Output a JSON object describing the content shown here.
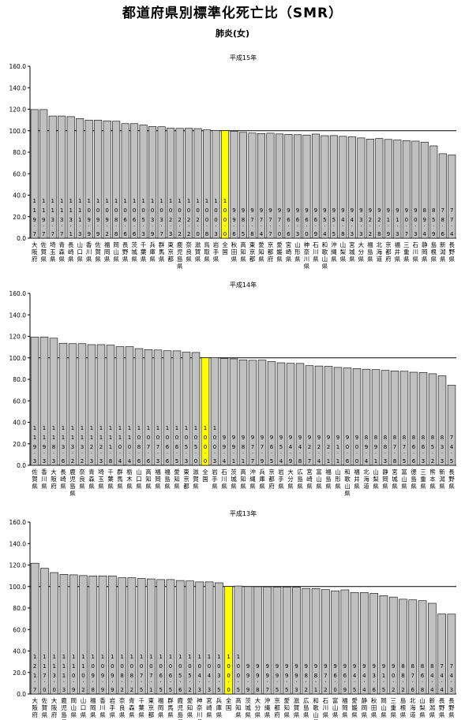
{
  "title": "都道府県別標準化死亡比（SMR）",
  "subtitle": "肺炎(女)",
  "colors": {
    "bar": "#c0c0c0",
    "highlight": "#ffff00",
    "stroke": "#000000",
    "reference_line": "#000000"
  },
  "chart_data": [
    {
      "type": "bar",
      "title": "平成15年",
      "ylim": [
        0,
        160
      ],
      "yticks": [
        "0.0",
        "20.0",
        "40.0",
        "60.0",
        "80.0",
        "100.0",
        "120.0",
        "140.0",
        "160.0"
      ],
      "reference_line": 100,
      "highlight": "全国",
      "categories": [
        "大阪府",
        "佐賀県",
        "埼玉県",
        "青森県",
        "長崎県",
        "山口県",
        "香川県",
        "佐賀県",
        "福岡県",
        "岡山県",
        "長野県",
        "茨城県",
        "千葉県",
        "兵庫県",
        "群馬県",
        "東京都",
        "鹿児島県",
        "奈良県",
        "滋賀県",
        "鳥取県",
        "岩手県",
        "全国",
        "秋田県",
        "高知県",
        "東京都",
        "愛知県",
        "京都府",
        "愛媛県",
        "宮崎県",
        "山形県",
        "神奈川県",
        "石川県",
        "和歌山県",
        "沖縄県",
        "山梨県",
        "宮城県",
        "大分県",
        "福島県",
        "北海道",
        "京都府",
        "福井県",
        "三重県",
        "石川県",
        "静岡県",
        "島根県",
        "新潟県",
        "長野県"
      ],
      "values": [
        119.7,
        119.7,
        113.7,
        113.7,
        113.1,
        111.3,
        109.9,
        109.9,
        109.2,
        108.8,
        106.6,
        106.6,
        105.3,
        103.9,
        103.7,
        102.3,
        102.2,
        102.2,
        102.0,
        100.8,
        100.3,
        100.0,
        99.6,
        98.5,
        97.8,
        97.4,
        97.7,
        97.0,
        96.6,
        96.3,
        96.0,
        96.9,
        95.4,
        95.5,
        94.8,
        94.3,
        93.3,
        92.2,
        92.8,
        91.9,
        91.3,
        90.7,
        90.3,
        89.4,
        85.9,
        78.6,
        77.4
      ]
    },
    {
      "type": "bar",
      "title": "平成14年",
      "ylim": [
        0,
        160
      ],
      "yticks": [
        "0.0",
        "20.0",
        "40.0",
        "60.0",
        "80.0",
        "100.0",
        "120.0",
        "140.0",
        "160.0"
      ],
      "reference_line": 100,
      "highlight": "全国",
      "categories": [
        "佐賀県",
        "香川県",
        "大阪府",
        "長崎県",
        "鹿児島県",
        "奈良県",
        "青森県",
        "埼玉県",
        "千葉県",
        "群馬県",
        "栃木県",
        "山口県",
        "高知県",
        "福岡県",
        "福島県",
        "愛知県",
        "東京都",
        "滋賀県",
        "全国",
        "岩手県",
        "石川県",
        "茨城県",
        "高知県",
        "沖縄県",
        "兵庫県",
        "京都府",
        "岩手県",
        "大分県",
        "広島県",
        "宮崎県",
        "富山県",
        "福島県",
        "山形県",
        "和歌山県",
        "福井県",
        "北海道",
        "山梨県",
        "静岡県",
        "宮城県",
        "富山県",
        "徳島県",
        "三重県",
        "熊本県",
        "新潟県",
        "長野県"
      ],
      "values": [
        119.3,
        119.3,
        118.3,
        113.6,
        113.2,
        113.2,
        112.3,
        112.3,
        111.8,
        110.4,
        110.4,
        108.6,
        107.6,
        107.3,
        106.6,
        106.5,
        105.3,
        105.0,
        100.0,
        100.3,
        99.4,
        99.1,
        98.1,
        97.7,
        97.9,
        96.5,
        95.4,
        94.9,
        94.8,
        92.7,
        92.4,
        92.1,
        91.1,
        90.6,
        90.0,
        89.4,
        89.1,
        88.3,
        87.8,
        87.5,
        86.6,
        86.3,
        85.2,
        83.3,
        74.5
      ]
    },
    {
      "type": "bar",
      "title": "平成13年",
      "ylim": [
        0,
        160
      ],
      "yticks": [
        "0.0",
        "20.0",
        "40.0",
        "60.0",
        "80.0",
        "100.0",
        "120.0",
        "140.0",
        "160.0"
      ],
      "reference_line": 100,
      "highlight": "全国",
      "categories": [
        "大阪府",
        "佐賀県",
        "大阪府",
        "鹿児島県",
        "岡山県",
        "山口県",
        "福岡県",
        "香川県",
        "岩手県",
        "奈良県",
        "青森県",
        "千葉県",
        "東京都",
        "福岡県",
        "群馬県",
        "鹿児島県",
        "愛知県",
        "神奈川県",
        "宮崎県",
        "兵庫県",
        "全国",
        "高知県",
        "茨城県",
        "大分県",
        "沖縄県",
        "京都府",
        "愛知県",
        "滋賀県",
        "広島県",
        "和歌山県",
        "石川県",
        "富山県",
        "福岡県",
        "愛媛県",
        "静岡県",
        "秋田県",
        "岡山県",
        "三重県",
        "島根県",
        "北海道",
        "山梨県",
        "新潟県",
        "長野県",
        "長野県"
      ],
      "values": [
        121.7,
        117.0,
        113.0,
        111.3,
        110.9,
        110.2,
        109.8,
        109.9,
        109.9,
        108.2,
        108.2,
        107.5,
        107.1,
        106.5,
        106.5,
        105.6,
        105.2,
        104.3,
        104.3,
        103.5,
        100.0,
        100.5,
        99.9,
        99.8,
        99.7,
        99.5,
        99.5,
        99.3,
        98.2,
        98.1,
        97.2,
        96.0,
        96.9,
        94.5,
        94.4,
        93.6,
        91.5,
        90.2,
        88.2,
        87.6,
        86.8,
        84.4,
        74.4,
        74.3
      ]
    }
  ]
}
